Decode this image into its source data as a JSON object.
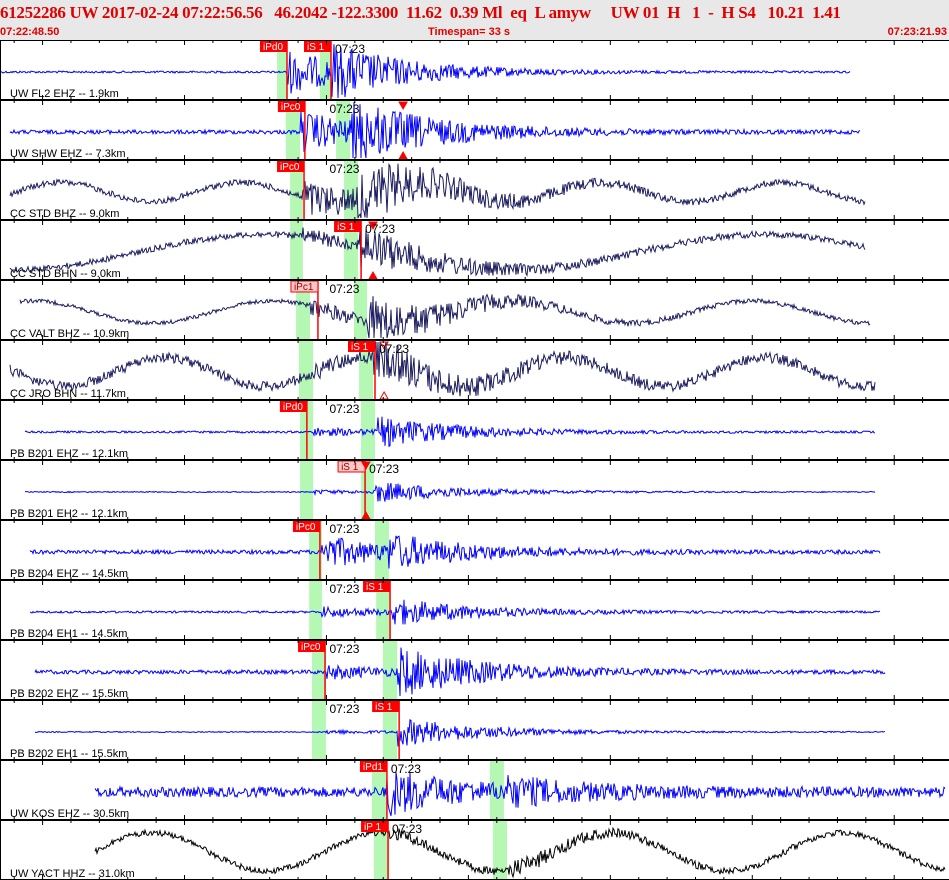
{
  "header": {
    "title": "61252286 UW 2017-02-24 07:22:56.56   46.2042 -122.3300  11.62  0.39 Ml  eq  L amyw     UW 01  H   1  -  H S4   10.21  1.41",
    "start_time": "07:22:48.50",
    "end_time": "07:23:21.93",
    "timespan_label": "Timespan=  33 s"
  },
  "minute_label": "07:23",
  "minute_time": "07:23:00.00",
  "colors": {
    "pick": "#ff0000",
    "pick_weak_bg": "#ffc8c8",
    "window": "#b4f8b4",
    "blue": "#0000ff",
    "navy": "#1c1c60",
    "black": "#000000"
  },
  "traces": [
    {
      "label": "UW FL2 EHZ -- 1.9km",
      "color": "blue",
      "start": "07:22:48.50",
      "end": "07:23:18.44",
      "picks": [
        {
          "label": "iPd0",
          "time": "07:22:58.61",
          "weak": false
        },
        {
          "label": "iS 1",
          "time": "07:23:00.16",
          "weak": false
        }
      ],
      "windows": [
        [
          "07:22:58.26",
          "07:22:58.61"
        ],
        [
          "07:22:59.77",
          "07:23:00.16"
        ]
      ],
      "markers": []
    },
    {
      "label": "UW SHW EHZ -- 7.3km",
      "color": "blue",
      "start": "07:22:48.85",
      "end": "07:23:18.80",
      "picks": [
        {
          "label": "iPc0",
          "time": "07:22:59.24",
          "weak": false
        }
      ],
      "windows": [
        [
          "07:22:58.57",
          "07:22:59.07"
        ],
        [
          "07:23:00.34",
          "07:23:00.83"
        ]
      ],
      "markers": [
        {
          "time": "07:23:02.70",
          "style": "filled"
        }
      ]
    },
    {
      "label": "CC STD BHZ -- 9.0km",
      "color": "navy",
      "start": "07:22:48.85",
      "end": "07:23:18.97",
      "picks": [
        {
          "label": "iPc0",
          "time": "07:22:59.21",
          "weak": false
        }
      ],
      "windows": [
        [
          "07:22:58.72",
          "07:22:59.17"
        ],
        [
          "07:23:00.62",
          "07:23:01.11"
        ]
      ],
      "markers": []
    },
    {
      "label": "CC STD BHN -- 9.0km",
      "color": "navy",
      "start": "07:22:48.85",
      "end": "07:23:18.97",
      "picks": [
        {
          "label": "iS 1",
          "time": "07:23:01.22",
          "weak": false
        }
      ],
      "windows": [
        [
          "07:22:58.72",
          "07:22:59.17"
        ],
        [
          "07:23:00.62",
          "07:23:01.11"
        ]
      ],
      "markers": [
        {
          "time": "07:23:01.64",
          "style": "filled"
        }
      ]
    },
    {
      "label": "CC VALT BHZ -- 10.9km",
      "color": "navy",
      "start": "07:22:49.20",
      "end": "07:23:19.15",
      "picks": [
        {
          "label": "iPc1",
          "time": "07:22:59.70",
          "weak": true
        }
      ],
      "windows": [
        [
          "07:22:58.93",
          "07:22:59.42"
        ],
        [
          "07:23:00.97",
          "07:23:01.43"
        ]
      ],
      "markers": []
    },
    {
      "label": "CC JRO BHN -- 11.7km",
      "color": "navy",
      "start": "07:22:48.85",
      "end": "07:23:19.32",
      "picks": [
        {
          "label": "iS 1",
          "time": "07:23:01.71",
          "weak": false
        }
      ],
      "windows": [
        [
          "07:22:59.03",
          "07:22:59.53"
        ],
        [
          "07:23:01.15",
          "07:23:01.64"
        ]
      ],
      "markers": [
        {
          "time": "07:23:02.03",
          "style": "hollow"
        }
      ]
    },
    {
      "label": "PB B201 EHZ -- 12.1km",
      "color": "blue",
      "start": "07:22:49.38",
      "end": "07:23:19.32",
      "picks": [
        {
          "label": "iPd0",
          "time": "07:22:59.31",
          "weak": false
        }
      ],
      "windows": [
        [
          "07:22:59.07",
          "07:22:59.53"
        ],
        [
          "07:23:01.22",
          "07:23:01.71"
        ]
      ],
      "markers": []
    },
    {
      "label": "PB B201 EH2 -- 12.1km",
      "color": "blue",
      "start": "07:22:49.38",
      "end": "07:23:19.32",
      "picks": [
        {
          "label": "iS 1",
          "time": "07:23:01.36",
          "weak": true
        }
      ],
      "windows": [
        [
          "07:22:59.07",
          "07:22:59.53"
        ],
        [
          "07:23:01.22",
          "07:23:01.67"
        ]
      ],
      "markers": [
        {
          "time": "07:23:01.39",
          "style": "filled"
        }
      ]
    },
    {
      "label": "PB B204 EHZ -- 14.5km",
      "color": "blue",
      "start": "07:22:49.56",
      "end": "07:23:19.50",
      "picks": [
        {
          "label": "iPc0",
          "time": "07:22:59.77",
          "weak": false
        }
      ],
      "windows": [
        [
          "07:22:59.39",
          "07:22:59.84"
        ],
        [
          "07:23:01.71",
          "07:23:02.20"
        ]
      ],
      "markers": []
    },
    {
      "label": "PB B204 EH1 -- 14.5km",
      "color": "blue",
      "start": "07:22:49.56",
      "end": "07:23:19.50",
      "picks": [
        {
          "label": "iS 1",
          "time": "07:23:02.24",
          "weak": false
        }
      ],
      "windows": [
        [
          "07:22:59.39",
          "07:22:59.84"
        ],
        [
          "07:23:01.75",
          "07:23:02.24"
        ]
      ],
      "markers": []
    },
    {
      "label": "PB B202 EHZ -- 15.5km",
      "color": "blue",
      "start": "07:22:49.73",
      "end": "07:23:19.68",
      "picks": [
        {
          "label": "iPc0",
          "time": "07:22:59.95",
          "weak": false
        }
      ],
      "windows": [
        [
          "07:22:59.49",
          "07:22:59.98"
        ],
        [
          "07:23:01.99",
          "07:23:02.49"
        ]
      ],
      "markers": []
    },
    {
      "label": "PB B202 EH1 -- 15.5km",
      "color": "blue",
      "start": "07:22:49.73",
      "end": "07:23:19.68",
      "picks": [
        {
          "label": "iS 1",
          "time": "07:23:02.56",
          "weak": false
        }
      ],
      "windows": [
        [
          "07:22:59.49",
          "07:22:59.98"
        ],
        [
          "07:23:01.99",
          "07:23:02.49"
        ]
      ],
      "markers": []
    },
    {
      "label": "UW KOS EHZ -- 30.5km",
      "color": "blue",
      "start": "07:22:51.85",
      "end": "07:23:21.79",
      "picks": [
        {
          "label": "iPd1",
          "time": "07:23:02.13",
          "weak": false
        }
      ],
      "windows": [
        [
          "07:23:01.60",
          "07:23:02.10"
        ],
        [
          "07:23:05.76",
          "07:23:06.25"
        ]
      ],
      "markers": []
    },
    {
      "label": "UW YACT HHZ -- 31.0km",
      "color": "black",
      "start": "07:22:51.85",
      "end": "07:23:21.79",
      "picks": [
        {
          "label": "iP 1",
          "time": "07:23:02.17",
          "weak": false
        }
      ],
      "windows": [
        [
          "07:23:01.67",
          "07:23:02.17"
        ],
        [
          "07:23:05.87",
          "07:23:06.36"
        ]
      ],
      "markers": []
    }
  ]
}
